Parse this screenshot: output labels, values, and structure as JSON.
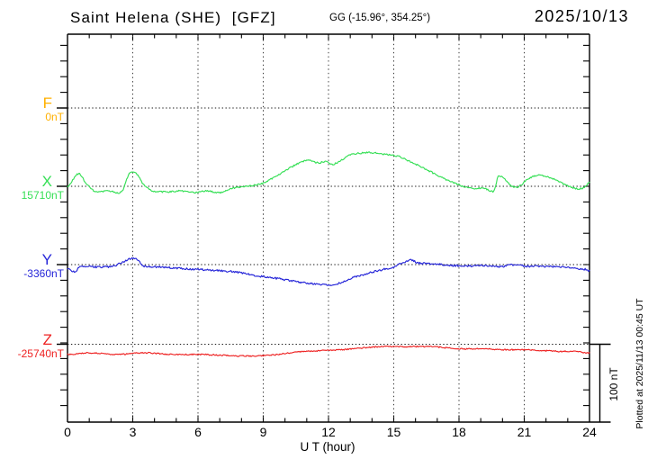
{
  "header": {
    "title": "Saint Helena (SHE)  [GFZ]",
    "coords": "GG (-15.96°, 354.25°)",
    "date": "2025/10/13"
  },
  "annotations": {
    "scale_bar_label": "100 nT",
    "plotted_at": "Plotted at 2025/11/13 00:45 UT"
  },
  "chart_data": {
    "type": "line",
    "title": "Magnetogram Saint Helena (SHE) [GFZ] 2025/10/13",
    "xlabel": "U T (hour)",
    "x_range": [
      0,
      24
    ],
    "x_major_ticks": [
      0,
      3,
      6,
      9,
      12,
      15,
      18,
      21,
      24
    ],
    "x_minor_step_hours": 1,
    "y_scale_bar_nT": 100,
    "grid": {
      "vertical_dotted_every_hours": 3,
      "horizontal_dotted_at_component_baselines": true
    },
    "series": [
      {
        "name": "F",
        "baseline_label": "0nT",
        "baseline_nT": 0,
        "color": "#ffb000",
        "noise_nT": 0,
        "points_hour_offset_nT": []
      },
      {
        "name": "X",
        "baseline_label": "15710nT",
        "baseline_nT": 15710,
        "color": "#35df55",
        "noise_nT": 1.0,
        "points_hour_offset_nT": [
          [
            0,
            -1
          ],
          [
            0.5,
            16
          ],
          [
            0.9,
            2
          ],
          [
            1.3,
            -7
          ],
          [
            1.9,
            -6
          ],
          [
            2.5,
            -7
          ],
          [
            2.8,
            14
          ],
          [
            3,
            18
          ],
          [
            3.2,
            15
          ],
          [
            3.5,
            2
          ],
          [
            3.9,
            -6
          ],
          [
            4.6,
            -7
          ],
          [
            5.2,
            -6
          ],
          [
            5.8,
            -8
          ],
          [
            6.4,
            -6
          ],
          [
            7,
            -8
          ],
          [
            7.5,
            -3
          ],
          [
            8.2,
            0
          ],
          [
            8.9,
            3
          ],
          [
            9.4,
            10
          ],
          [
            10,
            20
          ],
          [
            10.7,
            30
          ],
          [
            11.1,
            33
          ],
          [
            11.5,
            30
          ],
          [
            11.9,
            32
          ],
          [
            12.2,
            28
          ],
          [
            13,
            40
          ],
          [
            13.9,
            43
          ],
          [
            14.5,
            41
          ],
          [
            15.1,
            39
          ],
          [
            15.8,
            31
          ],
          [
            16.6,
            20
          ],
          [
            17.3,
            10
          ],
          [
            18,
            2
          ],
          [
            18.5,
            -2
          ],
          [
            19.2,
            -3
          ],
          [
            19.6,
            -6
          ],
          [
            19.8,
            12
          ],
          [
            20.1,
            9
          ],
          [
            20.4,
            1
          ],
          [
            20.7,
            -1
          ],
          [
            21.2,
            10
          ],
          [
            21.7,
            14
          ],
          [
            22.3,
            10
          ],
          [
            22.8,
            3
          ],
          [
            23.4,
            -3
          ],
          [
            23.8,
            -1
          ],
          [
            24,
            5
          ]
        ]
      },
      {
        "name": "Y",
        "baseline_label": "-3360nT",
        "baseline_nT": -3360,
        "color": "#2525d8",
        "noise_nT": 1.2,
        "points_hour_offset_nT": [
          [
            0,
            -5
          ],
          [
            0.3,
            -9
          ],
          [
            0.6,
            -3
          ],
          [
            1.5,
            -3
          ],
          [
            2.1,
            -2
          ],
          [
            2.7,
            5
          ],
          [
            3,
            8
          ],
          [
            3.2,
            7
          ],
          [
            3.5,
            -2
          ],
          [
            4.3,
            -3
          ],
          [
            5.2,
            -5
          ],
          [
            6,
            -6
          ],
          [
            6.6,
            -7
          ],
          [
            7.2,
            -8
          ],
          [
            8.1,
            -11
          ],
          [
            8.9,
            -15
          ],
          [
            9.7,
            -18
          ],
          [
            10.6,
            -22
          ],
          [
            11.2,
            -24
          ],
          [
            12,
            -26
          ],
          [
            12.6,
            -23
          ],
          [
            13.2,
            -16
          ],
          [
            14.1,
            -9
          ],
          [
            15,
            -3
          ],
          [
            15.5,
            3
          ],
          [
            15.8,
            6
          ],
          [
            16.1,
            2
          ],
          [
            16.8,
            1
          ],
          [
            17.6,
            -1
          ],
          [
            18.4,
            -2
          ],
          [
            19.2,
            -1
          ],
          [
            19.9,
            -3
          ],
          [
            20.5,
            0
          ],
          [
            21.1,
            -2
          ],
          [
            21.7,
            -2
          ],
          [
            22.6,
            -3
          ],
          [
            23.4,
            -5
          ],
          [
            23.8,
            -6
          ],
          [
            24,
            -8
          ]
        ]
      },
      {
        "name": "Z",
        "baseline_label": "-25740nT",
        "baseline_nT": -25740,
        "color": "#ee2222",
        "noise_nT": 0.8,
        "points_hour_offset_nT": [
          [
            0,
            -13
          ],
          [
            1,
            -11
          ],
          [
            2.3,
            -13
          ],
          [
            3.5,
            -11
          ],
          [
            4.8,
            -13
          ],
          [
            6,
            -13
          ],
          [
            7.2,
            -14
          ],
          [
            8.1,
            -15
          ],
          [
            9.3,
            -14
          ],
          [
            10.6,
            -10
          ],
          [
            11.8,
            -8
          ],
          [
            12.6,
            -7
          ],
          [
            13.5,
            -5
          ],
          [
            14.3,
            -3
          ],
          [
            15.1,
            -3
          ],
          [
            15.9,
            -3
          ],
          [
            16.8,
            -3
          ],
          [
            17.6,
            -5
          ],
          [
            18.4,
            -6
          ],
          [
            19.2,
            -6
          ],
          [
            20.1,
            -7
          ],
          [
            20.9,
            -7
          ],
          [
            21.7,
            -8
          ],
          [
            22.6,
            -9
          ],
          [
            23.4,
            -9
          ],
          [
            23.8,
            -11
          ],
          [
            24,
            -11
          ]
        ]
      }
    ]
  }
}
